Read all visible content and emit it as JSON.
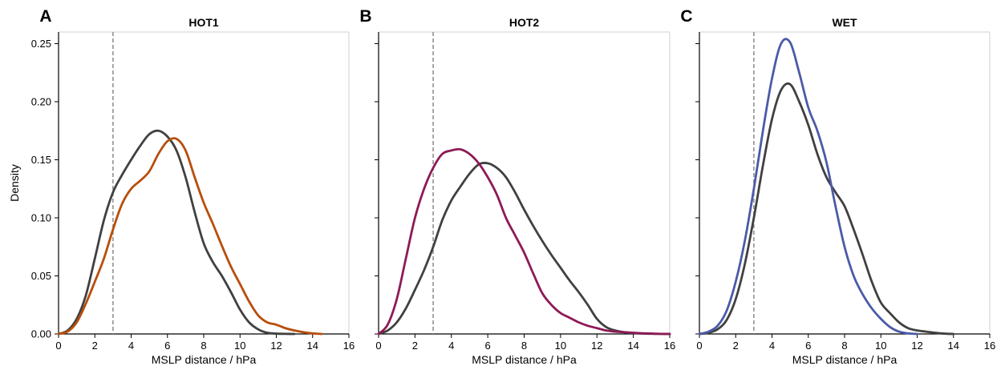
{
  "chart_data": [
    {
      "type": "line",
      "panel_letter": "A",
      "title": "HOT1",
      "xlabel": "MSLP distance / hPa",
      "ylabel": "Density",
      "xlim": [
        0,
        16
      ],
      "ylim": [
        0,
        0.26
      ],
      "xticks": [
        0,
        2,
        4,
        6,
        8,
        10,
        12,
        14,
        16
      ],
      "yticks": [
        0.0,
        0.05,
        0.1,
        0.15,
        0.2,
        0.25
      ],
      "ytick_labels": [
        "0.00",
        "0.05",
        "0.10",
        "0.15",
        "0.20",
        "0.25"
      ],
      "vline": 3,
      "grid": false,
      "series": [
        {
          "color": "#404040",
          "x": [
            0,
            0.5,
            1,
            1.5,
            2,
            2.5,
            3,
            3.5,
            4,
            4.5,
            5,
            5.5,
            6,
            6.5,
            7,
            7.5,
            8,
            8.5,
            9,
            9.5,
            10,
            10.5,
            11,
            11.5,
            12,
            12.5,
            13
          ],
          "y": [
            0.0,
            0.003,
            0.013,
            0.033,
            0.065,
            0.098,
            0.122,
            0.137,
            0.15,
            0.162,
            0.172,
            0.175,
            0.17,
            0.158,
            0.135,
            0.105,
            0.078,
            0.062,
            0.05,
            0.036,
            0.021,
            0.01,
            0.004,
            0.001,
            0.0003,
            0.0001,
            0.0
          ]
        },
        {
          "color": "#b84e0c",
          "x": [
            0,
            0.5,
            1,
            1.5,
            2,
            2.5,
            3,
            3.5,
            4,
            4.5,
            5,
            5.5,
            6,
            6.5,
            7,
            7.5,
            8,
            8.5,
            9,
            9.5,
            10,
            10.5,
            11,
            11.5,
            12,
            12.5,
            13,
            13.5,
            14,
            14.5
          ],
          "y": [
            0.0,
            0.002,
            0.01,
            0.026,
            0.045,
            0.065,
            0.09,
            0.112,
            0.125,
            0.132,
            0.14,
            0.155,
            0.166,
            0.168,
            0.158,
            0.135,
            0.113,
            0.095,
            0.076,
            0.058,
            0.043,
            0.028,
            0.016,
            0.01,
            0.008,
            0.005,
            0.003,
            0.0015,
            0.0005,
            0.0
          ]
        }
      ]
    },
    {
      "type": "line",
      "panel_letter": "B",
      "title": "HOT2",
      "xlabel": "MSLP distance / hPa",
      "ylabel": "",
      "xlim": [
        0,
        16
      ],
      "ylim": [
        0,
        0.26
      ],
      "xticks": [
        0,
        2,
        4,
        6,
        8,
        10,
        12,
        14,
        16
      ],
      "yticks": [
        0.0,
        0.05,
        0.1,
        0.15,
        0.2,
        0.25
      ],
      "ytick_labels": [],
      "vline": 3,
      "grid": false,
      "series": [
        {
          "color": "#404040",
          "x": [
            0,
            0.5,
            1,
            1.5,
            2,
            2.5,
            3,
            3.5,
            4,
            4.5,
            5,
            5.5,
            6,
            6.5,
            7,
            7.5,
            8,
            8.5,
            9,
            9.5,
            10,
            10.5,
            11,
            11.5,
            12,
            12.5,
            13,
            13.5,
            14,
            14.5,
            15,
            15.5,
            16
          ],
          "y": [
            0.0,
            0.003,
            0.01,
            0.022,
            0.038,
            0.055,
            0.075,
            0.098,
            0.115,
            0.127,
            0.138,
            0.146,
            0.147,
            0.143,
            0.135,
            0.122,
            0.107,
            0.093,
            0.08,
            0.068,
            0.057,
            0.046,
            0.036,
            0.025,
            0.013,
            0.006,
            0.003,
            0.0015,
            0.0008,
            0.0004,
            0.0002,
            0.0001,
            0.0
          ]
        },
        {
          "color": "#8e1a56",
          "x": [
            0,
            0.5,
            1,
            1.5,
            2,
            2.5,
            3,
            3.5,
            4,
            4.5,
            5,
            5.5,
            6,
            6.5,
            7,
            7.5,
            8,
            8.5,
            9,
            9.5,
            10,
            10.5,
            11,
            11.5,
            12,
            12.5,
            13,
            13.5,
            14,
            14.5,
            15,
            15.5,
            16
          ],
          "y": [
            0.0,
            0.008,
            0.03,
            0.065,
            0.1,
            0.125,
            0.143,
            0.155,
            0.158,
            0.159,
            0.155,
            0.147,
            0.135,
            0.12,
            0.1,
            0.085,
            0.07,
            0.052,
            0.035,
            0.025,
            0.018,
            0.014,
            0.01,
            0.007,
            0.005,
            0.003,
            0.002,
            0.0015,
            0.001,
            0.0006,
            0.0003,
            0.0001,
            0.0
          ]
        }
      ]
    },
    {
      "type": "line",
      "panel_letter": "C",
      "title": "WET",
      "xlabel": "MSLP distance / hPa",
      "ylabel": "",
      "xlim": [
        0,
        16
      ],
      "ylim": [
        0,
        0.26
      ],
      "xticks": [
        0,
        2,
        4,
        6,
        8,
        10,
        12,
        14,
        16
      ],
      "yticks": [
        0.0,
        0.05,
        0.1,
        0.15,
        0.2,
        0.25
      ],
      "ytick_labels": [],
      "vline": 3,
      "grid": false,
      "series": [
        {
          "color": "#404040",
          "x": [
            0,
            0.5,
            1,
            1.5,
            2,
            2.5,
            3,
            3.5,
            4,
            4.5,
            5,
            5.5,
            6,
            6.5,
            7,
            7.5,
            8,
            8.5,
            9,
            9.5,
            10,
            10.5,
            11,
            11.5,
            12,
            12.5,
            13,
            13.5,
            14
          ],
          "y": [
            0.0,
            0.001,
            0.004,
            0.012,
            0.03,
            0.06,
            0.1,
            0.145,
            0.185,
            0.21,
            0.215,
            0.2,
            0.18,
            0.155,
            0.135,
            0.122,
            0.11,
            0.09,
            0.068,
            0.045,
            0.027,
            0.018,
            0.01,
            0.005,
            0.003,
            0.002,
            0.001,
            0.0003,
            0.0
          ]
        },
        {
          "color": "#4a5ba8",
          "x": [
            0,
            0.5,
            1,
            1.5,
            2,
            2.5,
            3,
            3.5,
            4,
            4.5,
            5,
            5.5,
            6,
            6.5,
            7,
            7.5,
            8,
            8.5,
            9,
            9.5,
            10,
            10.5,
            11,
            11.5,
            12
          ],
          "y": [
            0.0,
            0.002,
            0.007,
            0.02,
            0.045,
            0.08,
            0.125,
            0.175,
            0.22,
            0.25,
            0.251,
            0.225,
            0.195,
            0.175,
            0.148,
            0.11,
            0.075,
            0.05,
            0.034,
            0.022,
            0.013,
            0.006,
            0.002,
            0.0005,
            0.0
          ]
        }
      ]
    }
  ]
}
